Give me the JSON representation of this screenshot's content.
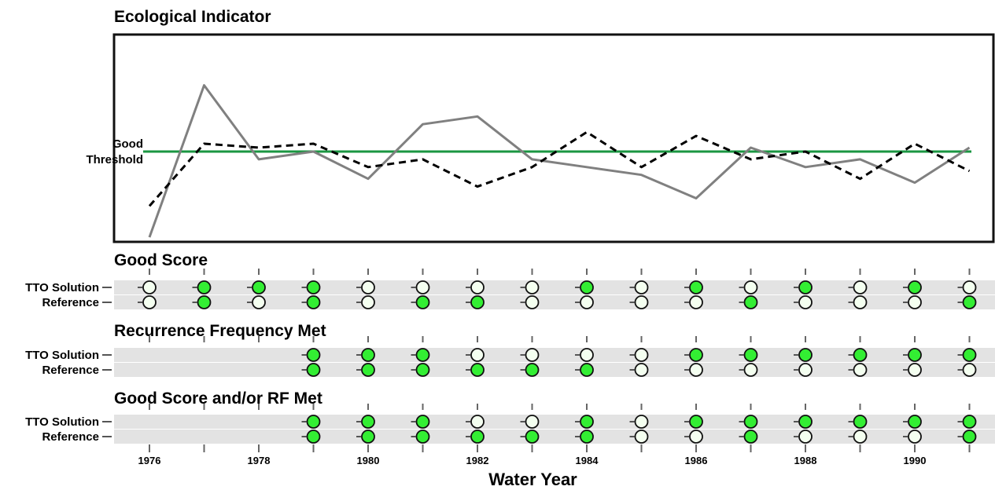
{
  "chart_data": {
    "type": "line",
    "title": "Ecological Indicator",
    "threshold_label_lines": [
      "Good",
      "Threshold"
    ],
    "threshold_value": 0,
    "xlabel": "Water Year",
    "ylabel": "",
    "x": [
      1976,
      1977,
      1978,
      1979,
      1980,
      1981,
      1982,
      1983,
      1984,
      1985,
      1986,
      1987,
      1988,
      1989,
      1990,
      1991
    ],
    "x_tick_labels": [
      "1976",
      "1978",
      "1980",
      "1982",
      "1984",
      "1986",
      "1988",
      "1990"
    ],
    "ylim": [
      -24,
      26
    ],
    "grid": false,
    "colors": {
      "tto_solution_line": "#808080",
      "reference_line": "#000000",
      "threshold": "#1a9641",
      "met": "#33ee33",
      "not_met": "#f4fff0",
      "row_band": "#e3e3e3"
    },
    "series": [
      {
        "values": [
          -22,
          17,
          -2,
          0,
          -7,
          7,
          9,
          -2,
          -4,
          -6,
          -12,
          1,
          -4,
          -2,
          -8,
          1
        ]
      },
      {
        "values": [
          -14,
          2,
          1,
          2,
          -4,
          -2,
          -9,
          -4,
          5,
          -4,
          4,
          -2,
          0,
          -7,
          2,
          -5
        ]
      }
    ],
    "score_panels": [
      {
        "title": "Good Score",
        "rows": [
          {
            "label": "TTO Solution",
            "met": [
              0,
              1,
              1,
              1,
              0,
              0,
              0,
              0,
              1,
              0,
              1,
              0,
              1,
              0,
              1,
              0
            ]
          },
          {
            "label": "Reference",
            "met": [
              0,
              1,
              0,
              1,
              0,
              1,
              1,
              0,
              0,
              0,
              0,
              1,
              0,
              0,
              0,
              1
            ]
          }
        ]
      },
      {
        "title": "Recurrence Frequency Met",
        "rows": [
          {
            "label": "TTO Solution",
            "met": [
              null,
              null,
              null,
              1,
              1,
              1,
              0,
              0,
              0,
              0,
              1,
              1,
              1,
              1,
              1,
              1
            ]
          },
          {
            "label": "Reference",
            "met": [
              null,
              null,
              null,
              1,
              1,
              1,
              1,
              1,
              1,
              0,
              0,
              0,
              0,
              0,
              0,
              0
            ]
          }
        ]
      },
      {
        "title": "Good Score and/or RF Met",
        "rows": [
          {
            "label": "TTO Solution",
            "met": [
              null,
              null,
              null,
              1,
              1,
              1,
              0,
              0,
              1,
              0,
              1,
              1,
              1,
              1,
              1,
              1
            ]
          },
          {
            "label": "Reference",
            "met": [
              null,
              null,
              null,
              1,
              1,
              1,
              1,
              1,
              1,
              0,
              0,
              1,
              0,
              0,
              0,
              1
            ]
          }
        ]
      }
    ]
  }
}
